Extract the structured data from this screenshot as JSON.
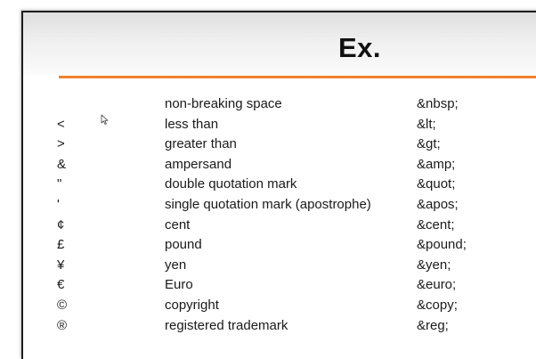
{
  "slide": {
    "title": "Ex.",
    "accent_color": "#f0822c"
  },
  "entities": [
    {
      "symbol": "",
      "name": "non-breaking space",
      "code": "&nbsp;"
    },
    {
      "symbol": "<",
      "name": "less than",
      "code": "&lt;"
    },
    {
      "symbol": ">",
      "name": "greater than",
      "code": "&gt;"
    },
    {
      "symbol": "&",
      "name": "ampersand",
      "code": "&amp;"
    },
    {
      "symbol": "\"",
      "name": "double quotation mark",
      "code": "&quot;"
    },
    {
      "symbol": "'",
      "name": "single quotation mark (apostrophe)",
      "code": "&apos;"
    },
    {
      "symbol": "¢",
      "name": "cent",
      "code": "&cent;"
    },
    {
      "symbol": "£",
      "name": "pound",
      "code": "&pound;"
    },
    {
      "symbol": "¥",
      "name": "yen",
      "code": "&yen;"
    },
    {
      "symbol": "€",
      "name": "Euro",
      "code": "&euro;"
    },
    {
      "symbol": "©",
      "name": "copyright",
      "code": "&copy;"
    },
    {
      "symbol": "®",
      "name": "registered trademark",
      "code": "&reg;"
    }
  ],
  "cursor": {
    "icon": "mouse-pointer-icon"
  }
}
